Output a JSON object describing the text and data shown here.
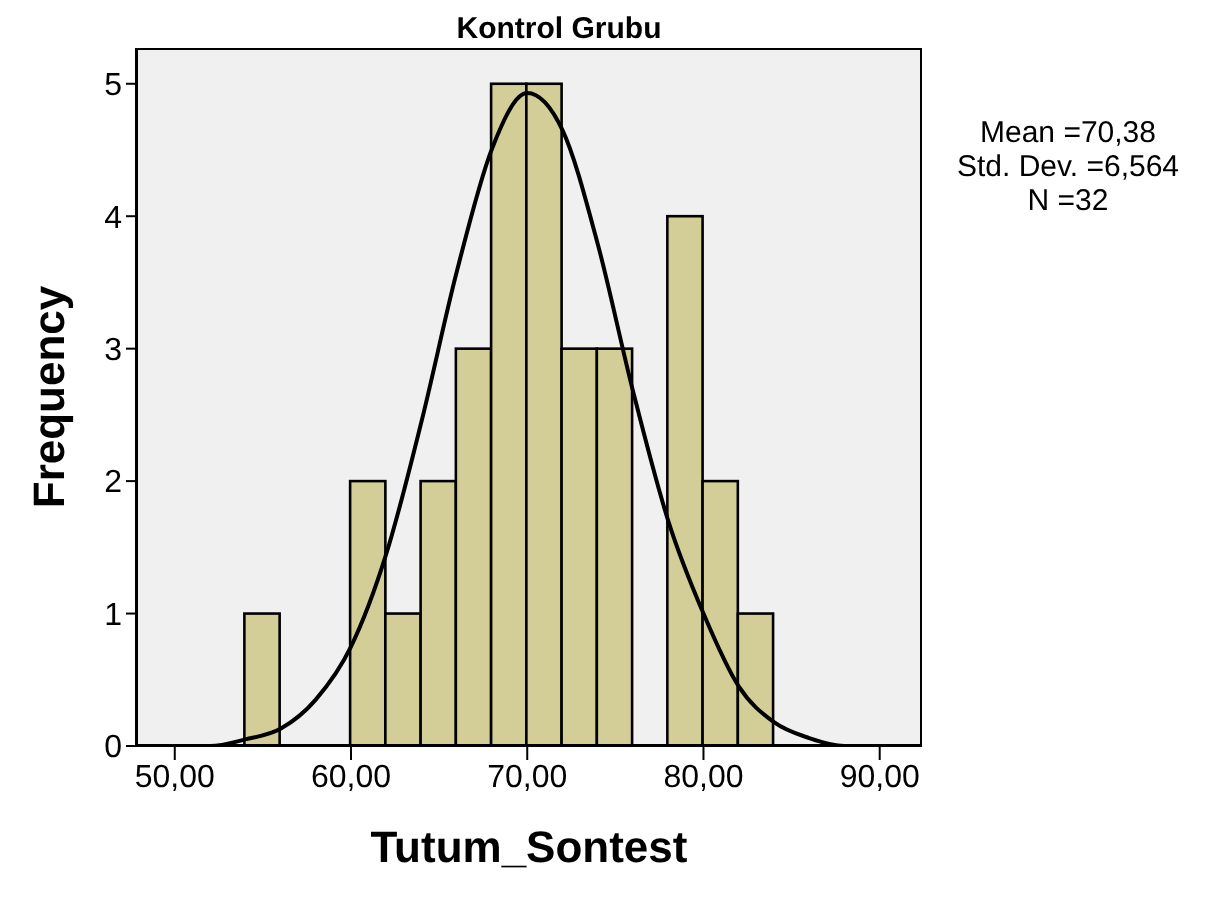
{
  "chart_data": {
    "type": "histogram",
    "title": "Kontrol Grubu",
    "xlabel": "Tutum_Sontest",
    "ylabel": "Frequency",
    "bins": [
      54,
      56,
      58,
      60,
      62,
      64,
      66,
      68,
      70,
      72,
      74,
      76,
      78,
      80,
      82,
      84
    ],
    "values": [
      1,
      0,
      0,
      2,
      1,
      2,
      3,
      5,
      5,
      3,
      3,
      0,
      4,
      2,
      1
    ],
    "color": "#d3ce97",
    "series": [
      {
        "type": "line",
        "color": "#000000",
        "x": [
          48,
          50,
          52,
          54,
          56,
          58,
          60,
          62,
          64,
          66,
          68,
          70,
          72,
          74,
          76,
          78,
          80,
          82,
          84,
          86,
          88,
          90,
          92
        ],
        "values": [
          0,
          0,
          0,
          0.05,
          0.13,
          0.35,
          0.75,
          1.45,
          2.45,
          3.58,
          4.51,
          4.93,
          4.65,
          3.79,
          2.68,
          1.7,
          1,
          0.45,
          0.18,
          0.06,
          0,
          0,
          0
        ]
      }
    ],
    "xlim": [
      47.8,
      92.4
    ],
    "ylim": [
      0,
      5.27
    ],
    "xticks": [
      {
        "value": 50,
        "label": "50,00"
      },
      {
        "value": 60,
        "label": "60,00"
      },
      {
        "value": 70,
        "label": "70,00"
      },
      {
        "value": 80,
        "label": "80,00"
      },
      {
        "value": 90,
        "label": "90,00"
      }
    ],
    "yticks": [
      0,
      1,
      2,
      3,
      4,
      5
    ],
    "grid": false,
    "marker": "none",
    "line_style": "solid",
    "annotations": [
      "Mean =70,38",
      "Std. Dev. =6,564",
      "N =32"
    ]
  }
}
